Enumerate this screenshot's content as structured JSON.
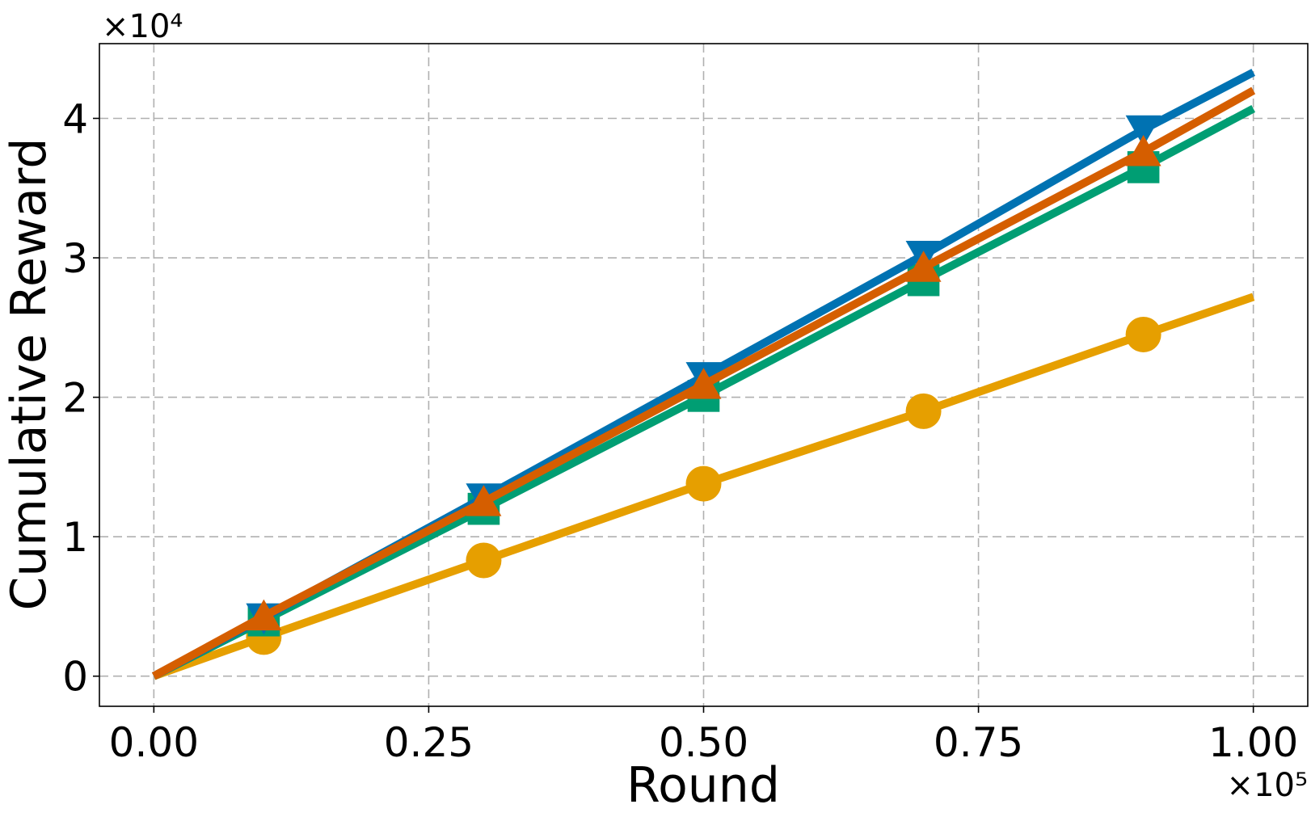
{
  "chart_data": {
    "type": "line",
    "title": "",
    "xlabel": "Round",
    "ylabel": "Cumulative Reward",
    "x_offset_label": "×10⁵",
    "y_offset_label": "×10⁴",
    "x_scale_factor": 100000,
    "y_scale_factor": 10000,
    "xlim": [
      -0.0495,
      1.0495
    ],
    "ylim": [
      -0.216,
      4.536
    ],
    "xticks": [
      0.0,
      0.25,
      0.5,
      0.75,
      1.0
    ],
    "xtick_labels": [
      "0.00",
      "0.25",
      "0.50",
      "0.75",
      "1.00"
    ],
    "yticks": [
      0,
      1,
      2,
      3,
      4
    ],
    "ytick_labels": [
      "0",
      "1",
      "2",
      "3",
      "4"
    ],
    "grid": true,
    "legend": "none",
    "series": [
      {
        "color": "#e69f00",
        "marker": "circle",
        "x": [
          0.0,
          0.1,
          0.3,
          0.5,
          0.7,
          0.9,
          1.0
        ],
        "y": [
          0.0,
          0.28,
          0.83,
          1.38,
          1.9,
          2.45,
          2.72
        ],
        "marker_x": [
          0.1,
          0.3,
          0.5,
          0.7,
          0.9
        ],
        "marker_y": [
          0.28,
          0.83,
          1.38,
          1.9,
          2.45
        ]
      },
      {
        "color": "#009e73",
        "marker": "square",
        "x": [
          0.0,
          0.1,
          0.3,
          0.5,
          0.7,
          0.9,
          1.0
        ],
        "y": [
          0.0,
          0.4,
          1.2,
          2.01,
          2.84,
          3.65,
          4.07
        ],
        "marker_x": [
          0.1,
          0.3,
          0.5,
          0.7,
          0.9
        ],
        "marker_y": [
          0.4,
          1.2,
          2.01,
          2.84,
          3.65
        ]
      },
      {
        "color": "#0072b2",
        "marker": "triangle-down",
        "x": [
          0.0,
          0.1,
          0.3,
          0.5,
          0.7,
          0.9,
          1.0
        ],
        "y": [
          0.0,
          0.42,
          1.28,
          2.15,
          3.02,
          3.92,
          4.33
        ],
        "marker_x": [
          0.1,
          0.3,
          0.5,
          0.7,
          0.9
        ],
        "marker_y": [
          0.42,
          1.28,
          2.15,
          3.02,
          3.92
        ]
      },
      {
        "color": "#d55e00",
        "marker": "triangle-up",
        "x": [
          0.0,
          0.1,
          0.3,
          0.5,
          0.7,
          0.9,
          1.0
        ],
        "y": [
          0.0,
          0.43,
          1.25,
          2.09,
          2.93,
          3.76,
          4.2
        ],
        "marker_x": [
          0.1,
          0.3,
          0.5,
          0.7,
          0.9
        ],
        "marker_y": [
          0.43,
          1.25,
          2.09,
          2.93,
          3.76
        ]
      }
    ]
  }
}
